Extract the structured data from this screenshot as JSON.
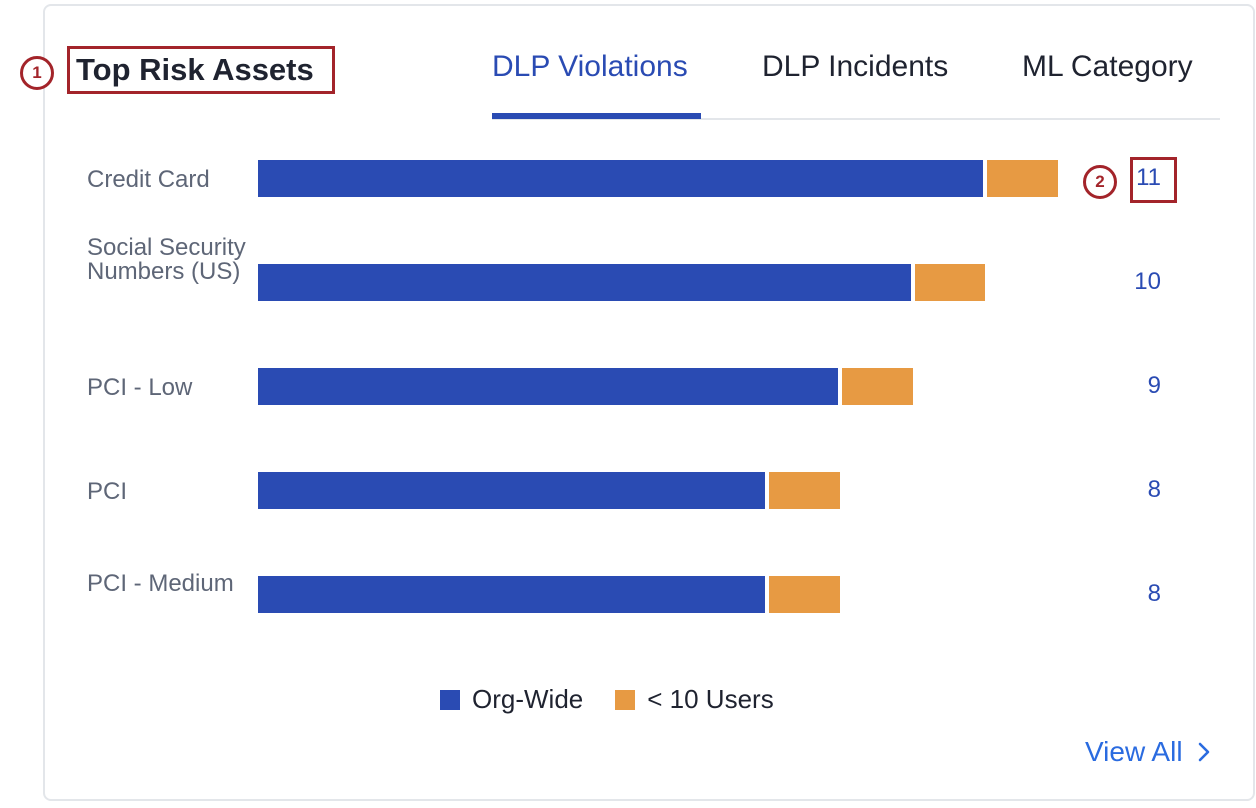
{
  "card": {
    "title": "Top Risk Assets",
    "view_all_label": "View All",
    "view_all_icon": "chevron-right-icon"
  },
  "tabs": [
    {
      "label": "DLP Violations",
      "active": true
    },
    {
      "label": "DLP Incidents",
      "active": false
    },
    {
      "label": "ML Category",
      "active": false
    }
  ],
  "annotations": [
    "1",
    "2"
  ],
  "colors": {
    "org_wide": "#2a4bb3",
    "small_users": "#e79a43",
    "accent": "#2a4bb3",
    "annotation": "#a3242a"
  },
  "chart_data": {
    "type": "bar",
    "orientation": "horizontal",
    "stacked": true,
    "categories": [
      "Credit Card",
      "Social Security Numbers (US)",
      "PCI - Low",
      "PCI",
      "PCI - Medium"
    ],
    "series": [
      {
        "name": "Org-Wide",
        "values": [
          10,
          9,
          8,
          7,
          7
        ]
      },
      {
        "name": "< 10 Users",
        "values": [
          1,
          1,
          1,
          1,
          1
        ]
      }
    ],
    "totals": [
      "11",
      "10",
      "9",
      "8",
      "8"
    ],
    "xlim": [
      0,
      11
    ],
    "legend_position": "bottom",
    "grid": false
  }
}
